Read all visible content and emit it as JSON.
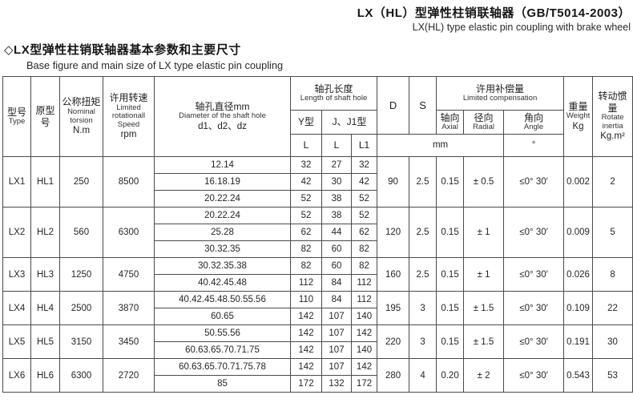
{
  "page_title": {
    "zh": "LX（HL）型弹性柱销联轴器（GB/T5014-2003）",
    "en": "LX(HL) type elastic pin coupling with brake wheel"
  },
  "section_heading": {
    "zh": "◇LX型弹性柱销联轴器基本参数和主要尺寸",
    "en": "Base figure and main size of LX type elastic pin coupling"
  },
  "table": {
    "header": {
      "type_zh": "型号",
      "type_en": "Type",
      "orig_zh": "原型号",
      "torque_zh": "公称扭矩",
      "torque_en1": "Nominal",
      "torque_en2": "torsion",
      "torque_unit": "N.m",
      "speed_zh": "许用转速",
      "speed_en1": "Limited",
      "speed_en2": "rotationall",
      "speed_en3": "Speed",
      "speed_unit": "rpm",
      "dia_zh": "轴孔直径mm",
      "dia_en": "Diameter of the shaft hole",
      "dia_sub": "d1、d2、dz",
      "len_zh": "轴孔长度",
      "len_en": "Length of shaft hole",
      "y_type": "Y型",
      "jj1_type": "J、J1型",
      "l_y": "L",
      "l_j": "L",
      "l1": "L1",
      "d": "D",
      "s": "S",
      "comp_zh": "许用补偿量",
      "comp_en": "Limited compensation",
      "axial_zh": "轴向",
      "axial_en": "Axial",
      "radial_zh": "径向",
      "radial_en": "Radial",
      "angle_zh": "角向",
      "angle_en": "Angle",
      "mm_unit": "mm",
      "deg_unit": "°",
      "weight_zh": "重量",
      "weight_en": "Weight",
      "weight_unit": "Kg",
      "inertia_zh": "转动惯量",
      "inertia_en1": "Rotate",
      "inertia_en2": "inertia",
      "inertia_unit": "Kg.m²"
    },
    "groups": [
      {
        "type": "LX1",
        "orig": "HL1",
        "torque": "250",
        "speed": "8500",
        "rows": [
          [
            "12.14",
            "32",
            "27",
            "32"
          ],
          [
            "16.18.19",
            "42",
            "30",
            "42"
          ],
          [
            "20.22.24",
            "52",
            "38",
            "52"
          ]
        ],
        "D": "90",
        "S": "2.5",
        "axial": "0.15",
        "radial": "± 0.5",
        "angle": "≤0° 30′",
        "weight": "0.002",
        "inertia": "2"
      },
      {
        "type": "LX2",
        "orig": "HL2",
        "torque": "560",
        "speed": "6300",
        "rows": [
          [
            "20.22.24",
            "52",
            "38",
            "52"
          ],
          [
            "25.28",
            "62",
            "44",
            "62"
          ],
          [
            "30.32.35",
            "82",
            "60",
            "82"
          ]
        ],
        "D": "120",
        "S": "2.5",
        "axial": "0.15",
        "radial": "± 1",
        "angle": "≤0° 30′",
        "weight": "0.009",
        "inertia": "5"
      },
      {
        "type": "LX3",
        "orig": "HL3",
        "torque": "1250",
        "speed": "4750",
        "rows": [
          [
            "30.32.35.38",
            "82",
            "60",
            "82"
          ],
          [
            "40.42.45.48",
            "112",
            "84",
            "112"
          ]
        ],
        "D": "160",
        "S": "2.5",
        "axial": "0.15",
        "radial": "± 1",
        "angle": "≤0° 30′",
        "weight": "0.026",
        "inertia": "8"
      },
      {
        "type": "LX4",
        "orig": "HL4",
        "torque": "2500",
        "speed": "3870",
        "rows": [
          [
            "40.42.45.48.50.55.56",
            "110",
            "84",
            "112"
          ],
          [
            "60.65",
            "142",
            "107",
            "140"
          ]
        ],
        "D": "195",
        "S": "3",
        "axial": "0.15",
        "radial": "± 1.5",
        "angle": "≤0° 30′",
        "weight": "0.109",
        "inertia": "22"
      },
      {
        "type": "LX5",
        "orig": "HL5",
        "torque": "3150",
        "speed": "3450",
        "rows": [
          [
            "50.55.56",
            "142",
            "107",
            "142"
          ],
          [
            "60.63.65.70.71.75",
            "142",
            "107",
            "140"
          ]
        ],
        "D": "220",
        "S": "3",
        "axial": "0.15",
        "radial": "± 1.5",
        "angle": "≤0° 30′",
        "weight": "0.191",
        "inertia": "30"
      },
      {
        "type": "LX6",
        "orig": "HL6",
        "torque": "6300",
        "speed": "2720",
        "rows": [
          [
            "60.63.65.70.71.75.78",
            "142",
            "107",
            "142"
          ],
          [
            "85",
            "172",
            "132",
            "172"
          ]
        ],
        "D": "280",
        "S": "4",
        "axial": "0.20",
        "radial": "± 2",
        "angle": "≤0° 30′",
        "weight": "0.543",
        "inertia": "53"
      }
    ]
  }
}
